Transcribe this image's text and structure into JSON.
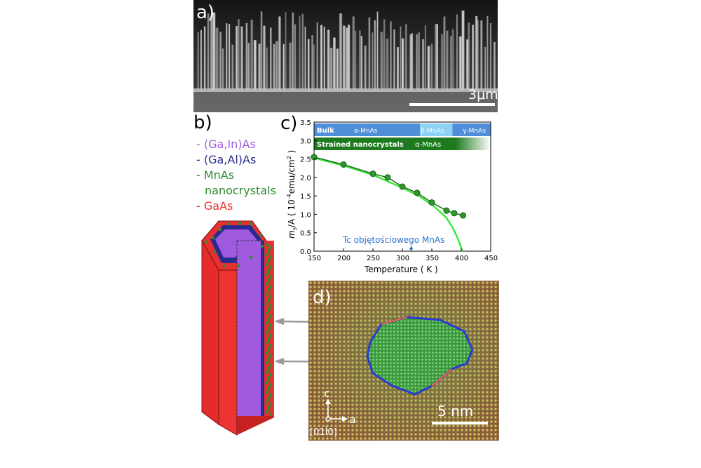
{
  "panel_a": {
    "label": "a)",
    "scale_bar": "3μm"
  },
  "panel_b": {
    "label": "b)",
    "legend": [
      {
        "text": "- (Ga,In)As",
        "color": "#a05ae0"
      },
      {
        "text": "- (Ga,Al)As",
        "color": "#2b2b8f"
      },
      {
        "text": "- MnAs",
        "color": "#2e8b2e"
      },
      {
        "text": "nanocrystals",
        "color": "#2e8b2e"
      },
      {
        "text": "- GaAs",
        "color": "#e83030"
      }
    ]
  },
  "panel_c": {
    "label": "c)",
    "bulk_label": "Bulk",
    "bulk_alpha": "α-MnAs",
    "bulk_beta": "β-MnAs",
    "bulk_gamma": "γ-MnAs",
    "strained_label": "Strained nanocrystals",
    "strained_alpha": "α-MnAs",
    "annotation": "Tc objętościowego MnAs",
    "ylabel_main": "m",
    "ylabel_sub": "s",
    "ylabel_rest": "/A  ( 10",
    "ylabel_exp": "-4",
    "ylabel_unit": "emu/cm",
    "ylabel_sq": "2",
    "ylabel_close": " )",
    "xlabel": "Temperature  ( K )"
  },
  "panel_d": {
    "label": "d)",
    "scale_bar": "5 nm",
    "axis_c": "c",
    "axis_a": "a",
    "zone": "[01Ī0]"
  },
  "colors": {
    "gaas": "#e83030",
    "gainas": "#a05ae0",
    "gaalas": "#2b2b8f",
    "mnas": "#2e8b2e",
    "bulk_band": "#4f8fd9",
    "beta_band": "#8fd0f5",
    "strained_band": "#1e7a1e",
    "curve": "#3de83d"
  },
  "chart_data": {
    "type": "scatter",
    "x_ticks": [
      "150",
      "200",
      "250",
      "300",
      "350",
      "400",
      "450"
    ],
    "y_ticks": [
      "0.0",
      "0.5",
      "1.0",
      "1.5",
      "2.0",
      "2.5",
      "3.0",
      "3.5"
    ],
    "xlim": [
      150,
      450
    ],
    "ylim": [
      0,
      3.5
    ],
    "series": [
      {
        "values": [
          [
            150,
            2.55
          ],
          [
            200,
            2.35
          ],
          [
            250,
            2.1
          ],
          [
            275,
            2.0
          ],
          [
            300,
            1.75
          ],
          [
            325,
            1.58
          ],
          [
            350,
            1.32
          ],
          [
            375,
            1.1
          ],
          [
            388,
            1.03
          ],
          [
            403,
            0.97
          ]
        ]
      }
    ],
    "fit_curve": [
      [
        150,
        2.53
      ],
      [
        200,
        2.32
      ],
      [
        250,
        2.07
      ],
      [
        300,
        1.72
      ],
      [
        330,
        1.48
      ],
      [
        355,
        1.2
      ],
      [
        375,
        0.9
      ],
      [
        385,
        0.65
      ],
      [
        392,
        0.42
      ],
      [
        398,
        0.18
      ],
      [
        402,
        0.0
      ]
    ],
    "bulk_regions": [
      [
        150,
        330
      ],
      [
        330,
        385
      ],
      [
        385,
        450
      ]
    ],
    "annotation_x": 315
  }
}
